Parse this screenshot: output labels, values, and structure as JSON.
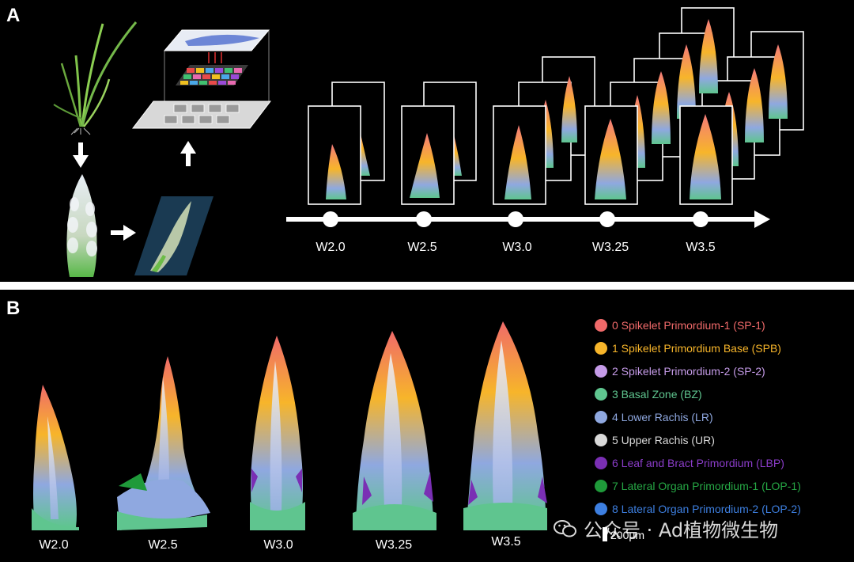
{
  "panel_a": {
    "label": "A",
    "timeline": [
      "W2.0",
      "W2.5",
      "W3.0",
      "W3.25",
      "W3.5"
    ]
  },
  "panel_b": {
    "label": "B",
    "stages": [
      "W2.0",
      "W2.5",
      "W3.0",
      "W3.25",
      "W3.5"
    ],
    "legend": [
      {
        "label": "0 Spikelet Primordium-1 (SP-1)",
        "color": "#f06a6a"
      },
      {
        "label": "1 Spikelet Primordium Base (SPB)",
        "color": "#f7b52a"
      },
      {
        "label": "2 Spikelet Primordium-2 (SP-2)",
        "color": "#c59be8"
      },
      {
        "label": "3 Basal Zone (BZ)",
        "color": "#5fc58f"
      },
      {
        "label": "4 Lower Rachis (LR)",
        "color": "#8fa8e0"
      },
      {
        "label": "5 Upper Rachis (UR)",
        "color": "#d9d9d9"
      },
      {
        "label": "6 Leaf and Bract Primordium (LBP)",
        "color": "#7a2fb4"
      },
      {
        "label": "7 Lateral Organ Primordium-1 (LOP-1)",
        "color": "#1f9a3a"
      },
      {
        "label": "8 Lateral Organ Primordium-2 (LOP-2)",
        "color": "#3d7fe0"
      }
    ],
    "scale_bar": "200μm"
  },
  "watermark": "公众号 · Ad植物微生物"
}
